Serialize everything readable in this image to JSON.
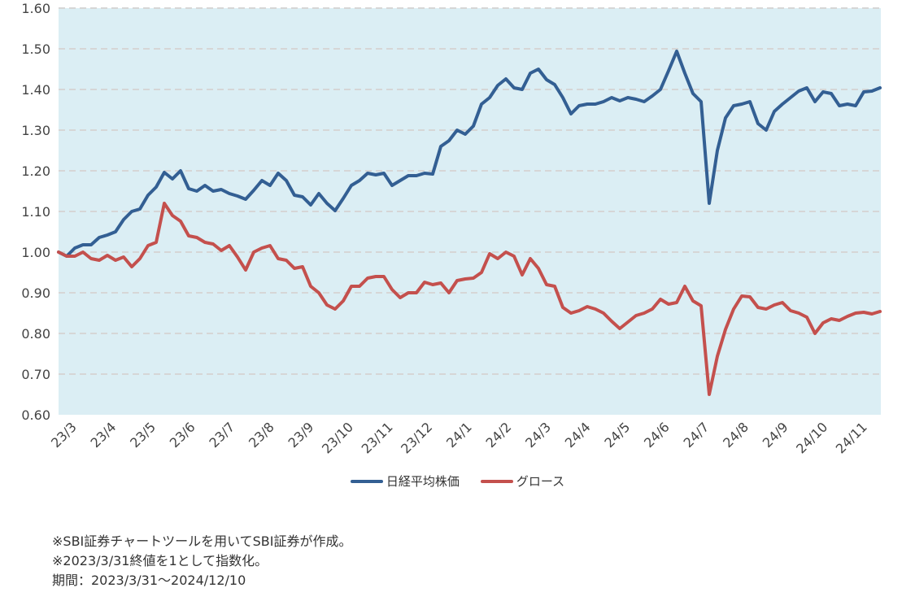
{
  "chart_data": {
    "type": "line",
    "title": "",
    "xlabel": "",
    "ylabel": "",
    "ylim": [
      0.6,
      1.6
    ],
    "yticks": [
      "0.60",
      "0.70",
      "0.80",
      "0.90",
      "1.00",
      "1.10",
      "1.20",
      "1.30",
      "1.40",
      "1.50",
      "1.60"
    ],
    "x_tick_labels": [
      "23/3",
      "23/4",
      "23/5",
      "23/6",
      "23/7",
      "23/8",
      "23/9",
      "23/10",
      "23/11",
      "23/12",
      "24/1",
      "24/2",
      "24/3",
      "24/4",
      "24/5",
      "24/6",
      "24/7",
      "24/8",
      "24/9",
      "24/10",
      "24/11"
    ],
    "period": {
      "start": "2023-03-31",
      "end": "2024-12-10"
    },
    "sampling": "evenly spaced over period",
    "grid": "horizontal dashed",
    "background": "#dbeef4",
    "legend_position": "bottom",
    "series": [
      {
        "name": "日経平均株価",
        "color": "#335f93",
        "values": [
          1.0,
          0.99,
          1.01,
          1.018,
          1.018,
          1.036,
          1.042,
          1.05,
          1.08,
          1.1,
          1.106,
          1.14,
          1.16,
          1.196,
          1.18,
          1.2,
          1.156,
          1.15,
          1.164,
          1.15,
          1.154,
          1.144,
          1.138,
          1.13,
          1.152,
          1.176,
          1.164,
          1.194,
          1.176,
          1.14,
          1.136,
          1.116,
          1.144,
          1.12,
          1.102,
          1.132,
          1.164,
          1.176,
          1.194,
          1.19,
          1.194,
          1.164,
          1.176,
          1.188,
          1.188,
          1.194,
          1.192,
          1.26,
          1.274,
          1.3,
          1.29,
          1.31,
          1.364,
          1.38,
          1.41,
          1.426,
          1.404,
          1.4,
          1.44,
          1.45,
          1.424,
          1.412,
          1.38,
          1.34,
          1.36,
          1.364,
          1.364,
          1.37,
          1.38,
          1.372,
          1.38,
          1.376,
          1.37,
          1.384,
          1.4,
          1.446,
          1.494,
          1.44,
          1.39,
          1.37,
          1.12,
          1.25,
          1.33,
          1.36,
          1.364,
          1.37,
          1.316,
          1.3,
          1.346,
          1.364,
          1.38,
          1.396,
          1.404,
          1.37,
          1.394,
          1.39,
          1.36,
          1.364,
          1.36,
          1.394,
          1.396,
          1.404
        ]
      },
      {
        "name": "グロース",
        "color": "#c4504d",
        "values": [
          1.0,
          0.99,
          0.99,
          1.0,
          0.984,
          0.98,
          0.992,
          0.98,
          0.988,
          0.964,
          0.984,
          1.016,
          1.024,
          1.12,
          1.09,
          1.076,
          1.04,
          1.036,
          1.024,
          1.02,
          1.004,
          1.016,
          0.988,
          0.956,
          1.0,
          1.01,
          1.016,
          0.984,
          0.98,
          0.96,
          0.964,
          0.916,
          0.9,
          0.87,
          0.86,
          0.88,
          0.916,
          0.916,
          0.936,
          0.94,
          0.94,
          0.908,
          0.888,
          0.9,
          0.9,
          0.926,
          0.92,
          0.924,
          0.9,
          0.93,
          0.934,
          0.936,
          0.95,
          0.996,
          0.984,
          1.0,
          0.99,
          0.944,
          0.984,
          0.96,
          0.92,
          0.916,
          0.864,
          0.85,
          0.856,
          0.866,
          0.86,
          0.85,
          0.83,
          0.812,
          0.828,
          0.844,
          0.85,
          0.86,
          0.884,
          0.872,
          0.876,
          0.916,
          0.88,
          0.868,
          0.65,
          0.744,
          0.81,
          0.86,
          0.892,
          0.89,
          0.864,
          0.86,
          0.87,
          0.876,
          0.856,
          0.85,
          0.84,
          0.8,
          0.826,
          0.836,
          0.832,
          0.842,
          0.85,
          0.852,
          0.848,
          0.854
        ]
      }
    ]
  },
  "notes": [
    "※SBI証券チャートツールを用いてSBI証券が作成。",
    "※2023/3/31終値を1として指数化。",
    "期間：2023/3/31～2024/12/10"
  ]
}
